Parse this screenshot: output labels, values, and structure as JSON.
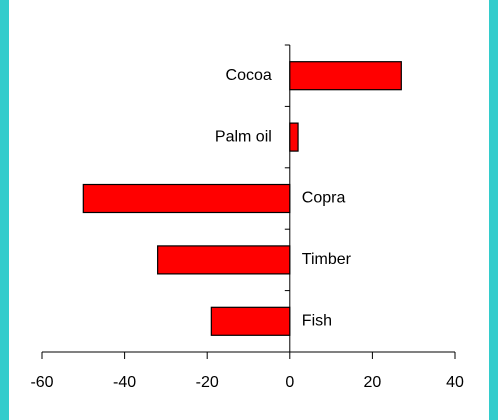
{
  "chart_data": {
    "type": "bar",
    "orientation": "horizontal",
    "categories": [
      "Cocoa",
      "Palm oil",
      "Copra",
      "Timber",
      "Fish"
    ],
    "values": [
      27,
      2,
      -50,
      -32,
      -19
    ],
    "color": "#ff0000",
    "xlim": [
      -60,
      40
    ],
    "xticks": [
      -60,
      -40,
      -20,
      0,
      20,
      40
    ]
  }
}
